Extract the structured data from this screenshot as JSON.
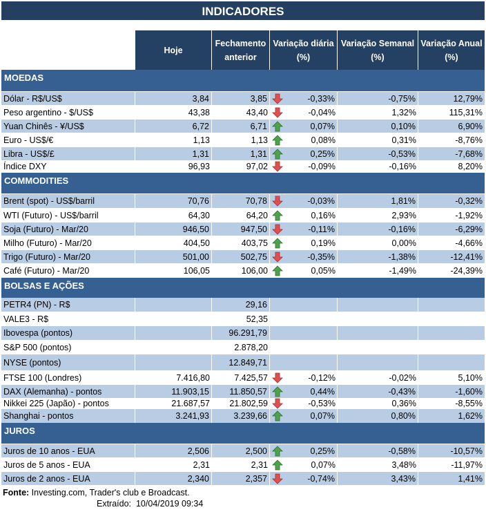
{
  "title": "INDICADORES",
  "headers": [
    "Hoje",
    "Fechamento anterior",
    "Variação diária (%)",
    "Variação Semanal (%)",
    "Variação Anual (%)"
  ],
  "colors": {
    "title": "#243f60",
    "header": "#244062",
    "section": "#366092",
    "stripe": "#b8cce4",
    "up": "#4ea24e",
    "down": "#e05050"
  },
  "sections": [
    {
      "name": "MOEDAS",
      "rows": [
        {
          "label": "Dólar - R$/US$",
          "hoje": "3,84",
          "fech": "3,85",
          "trend": "down",
          "dia": "-0,33%",
          "sem": "-0,75%",
          "anu": "12,79%"
        },
        {
          "label": "Peso argentino - $/US$",
          "hoje": "43,38",
          "fech": "43,40",
          "trend": "down",
          "dia": "-0,04%",
          "sem": "1,32%",
          "anu": "115,31%"
        },
        {
          "label": "Yuan Chinês - ¥/US$",
          "hoje": "6,72",
          "fech": "6,71",
          "trend": "up",
          "dia": "0,07%",
          "sem": "0,10%",
          "anu": "6,90%"
        },
        {
          "label": "Euro - US$/€",
          "hoje": "1,13",
          "fech": "1,13",
          "trend": "up",
          "dia": "0,08%",
          "sem": "0,31%",
          "anu": "-8,76%"
        },
        {
          "label": "Libra - US$/£",
          "hoje": "1,31",
          "fech": "1,31",
          "trend": "up",
          "dia": "0,25%",
          "sem": "-0,53%",
          "anu": "-7,68%"
        },
        {
          "label": "Índice DXY",
          "hoje": "96,93",
          "fech": "97,02",
          "trend": "down",
          "dia": "-0,09%",
          "sem": "-0,16%",
          "anu": "8,20%"
        }
      ]
    },
    {
      "name": "COMMODITIES",
      "rows": [
        {
          "label": "Brent (spot) - US$/barril",
          "hoje": "70,76",
          "fech": "70,78",
          "trend": "down",
          "dia": "-0,03%",
          "sem": "1,81%",
          "anu": "-0,32%"
        },
        {
          "label": "WTI (Futuro) - US$/barril",
          "hoje": "64,30",
          "fech": "64,20",
          "trend": "up",
          "dia": "0,16%",
          "sem": "2,93%",
          "anu": "-1,92%"
        },
        {
          "label": "Soja (Futuro) - Mar/20",
          "hoje": "946,50",
          "fech": "947,50",
          "trend": "down",
          "dia": "-0,11%",
          "sem": "-0,16%",
          "anu": "-6,29%"
        },
        {
          "label": "Milho (Futuro) - Mar/20",
          "hoje": "404,50",
          "fech": "403,75",
          "trend": "up",
          "dia": "0,19%",
          "sem": "0,00%",
          "anu": "-4,66%"
        },
        {
          "label": "Trigo (Futuro) - Mar/20",
          "hoje": "501,00",
          "fech": "502,75",
          "trend": "down",
          "dia": "-0,35%",
          "sem": "-1,38%",
          "anu": "-12,41%"
        },
        {
          "label": "Café (Futuro) - Mar/20",
          "hoje": "106,05",
          "fech": "106,00",
          "trend": "up",
          "dia": "0,05%",
          "sem": "-1,49%",
          "anu": "-24,39%"
        }
      ]
    },
    {
      "name": "BOLSAS E AÇÕES",
      "rows": [
        {
          "label": "PETR4 (PN) - R$",
          "hoje": "",
          "fech": "29,16",
          "trend": "",
          "dia": "",
          "sem": "",
          "anu": ""
        },
        {
          "label": "VALE3 - R$",
          "hoje": "",
          "fech": "52,35",
          "trend": "",
          "dia": "",
          "sem": "",
          "anu": ""
        },
        {
          "label": "Ibovespa (pontos)",
          "hoje": "",
          "fech": "96.291,79",
          "trend": "",
          "dia": "",
          "sem": "",
          "anu": ""
        },
        {
          "label": "S&P 500 (pontos)",
          "hoje": "",
          "fech": "2.878,20",
          "trend": "",
          "dia": "",
          "sem": "",
          "anu": ""
        },
        {
          "label": "NYSE (pontos)",
          "hoje": "",
          "fech": "12.849,71",
          "trend": "",
          "dia": "",
          "sem": "",
          "anu": ""
        },
        {
          "label": "FTSE 100 (Londres)",
          "hoje": "7.416,80",
          "fech": "7.425,57",
          "trend": "down",
          "dia": "-0,12%",
          "sem": "-0,02%",
          "anu": "5,10%"
        },
        {
          "label": "DAX (Alemanha) - pontos",
          "hoje": "11.903,15",
          "fech": "11.850,57",
          "trend": "up",
          "dia": "0,44%",
          "sem": "-0,43%",
          "anu": "-1,60%"
        },
        {
          "label": "Nikkei 225 (Japão) - pontos",
          "hoje": "21.687,57",
          "fech": "21.802,59",
          "trend": "down",
          "dia": "-0,53%",
          "sem": "0,36%",
          "anu": "-8,55%"
        },
        {
          "label": "Shanghai - pontos",
          "hoje": "3.241,93",
          "fech": "3.239,66",
          "trend": "up",
          "dia": "0,07%",
          "sem": "0,80%",
          "anu": "1,62%"
        }
      ]
    },
    {
      "name": "JUROS",
      "rows": [
        {
          "label": "Juros de 10 anos - EUA",
          "hoje": "2,506",
          "fech": "2,500",
          "trend": "up",
          "dia": "0,25%",
          "sem": "-0,58%",
          "anu": "-10,57%"
        },
        {
          "label": "Juros de 5 anos - EUA",
          "hoje": "2,31",
          "fech": "2,31",
          "trend": "up",
          "dia": "0,07%",
          "sem": "3,48%",
          "anu": "-11,97%"
        },
        {
          "label": "Juros de 2 anos - EUA",
          "hoje": "2,340",
          "fech": "2,357",
          "trend": "down",
          "dia": "-0,74%",
          "sem": "3,43%",
          "anu": "1,41%"
        }
      ]
    }
  ],
  "footer": {
    "source_label": "Fonte:",
    "source_text": "Investing.com, Trader's club e Broadcast.",
    "extracted_label": "Extraído:",
    "extracted_value": "10/04/2019 09:34"
  }
}
